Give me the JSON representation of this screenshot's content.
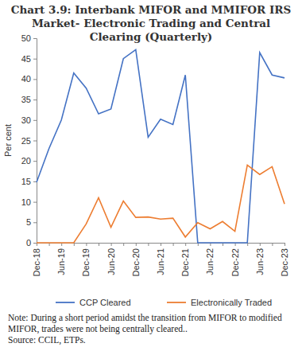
{
  "chart_data": {
    "type": "line",
    "title": "Chart 3.9: Interbank MIFOR and MMIFOR IRS Market- Electronic Trading and Central Clearing (Quarterly)",
    "y_label": "Per cent",
    "note": "Note: During a short period amidst the transition from MIFOR to modified MIFOR, trades were not being centrally cleared..",
    "source": "Source: CCIL, ETPs.",
    "categories": [
      "Dec-18",
      null,
      "Jun-19",
      null,
      "Dec-19",
      null,
      "Jun-20",
      null,
      "Dec-20",
      null,
      "Jun-21",
      null,
      "Dec-21",
      null,
      "Jun-22",
      null,
      "Dec-22",
      null,
      "Jun-23",
      null,
      "Dec-23"
    ],
    "series": [
      {
        "name": "CCP Cleared",
        "color": "#4472c4",
        "values": [
          14.8,
          23,
          30,
          41.5,
          37.8,
          31.5,
          32.7,
          45,
          47.2,
          25.8,
          30.2,
          28.9,
          41,
          0,
          0,
          0,
          0,
          0,
          46.5,
          41,
          40.3
        ]
      },
      {
        "name": "Electronically Traded",
        "color": "#ed7d31",
        "values": [
          0,
          0,
          0,
          0,
          4.6,
          11,
          3.8,
          10.2,
          6.2,
          6.3,
          5.8,
          6,
          1.4,
          4.9,
          3.4,
          5.2,
          2.8,
          19,
          16.7,
          18.6,
          9.5
        ]
      }
    ],
    "ylim": [
      0,
      50
    ],
    "yticks": [
      0,
      5,
      10,
      15,
      20,
      25,
      30,
      35,
      40,
      45,
      50
    ],
    "legend": "bottom"
  }
}
